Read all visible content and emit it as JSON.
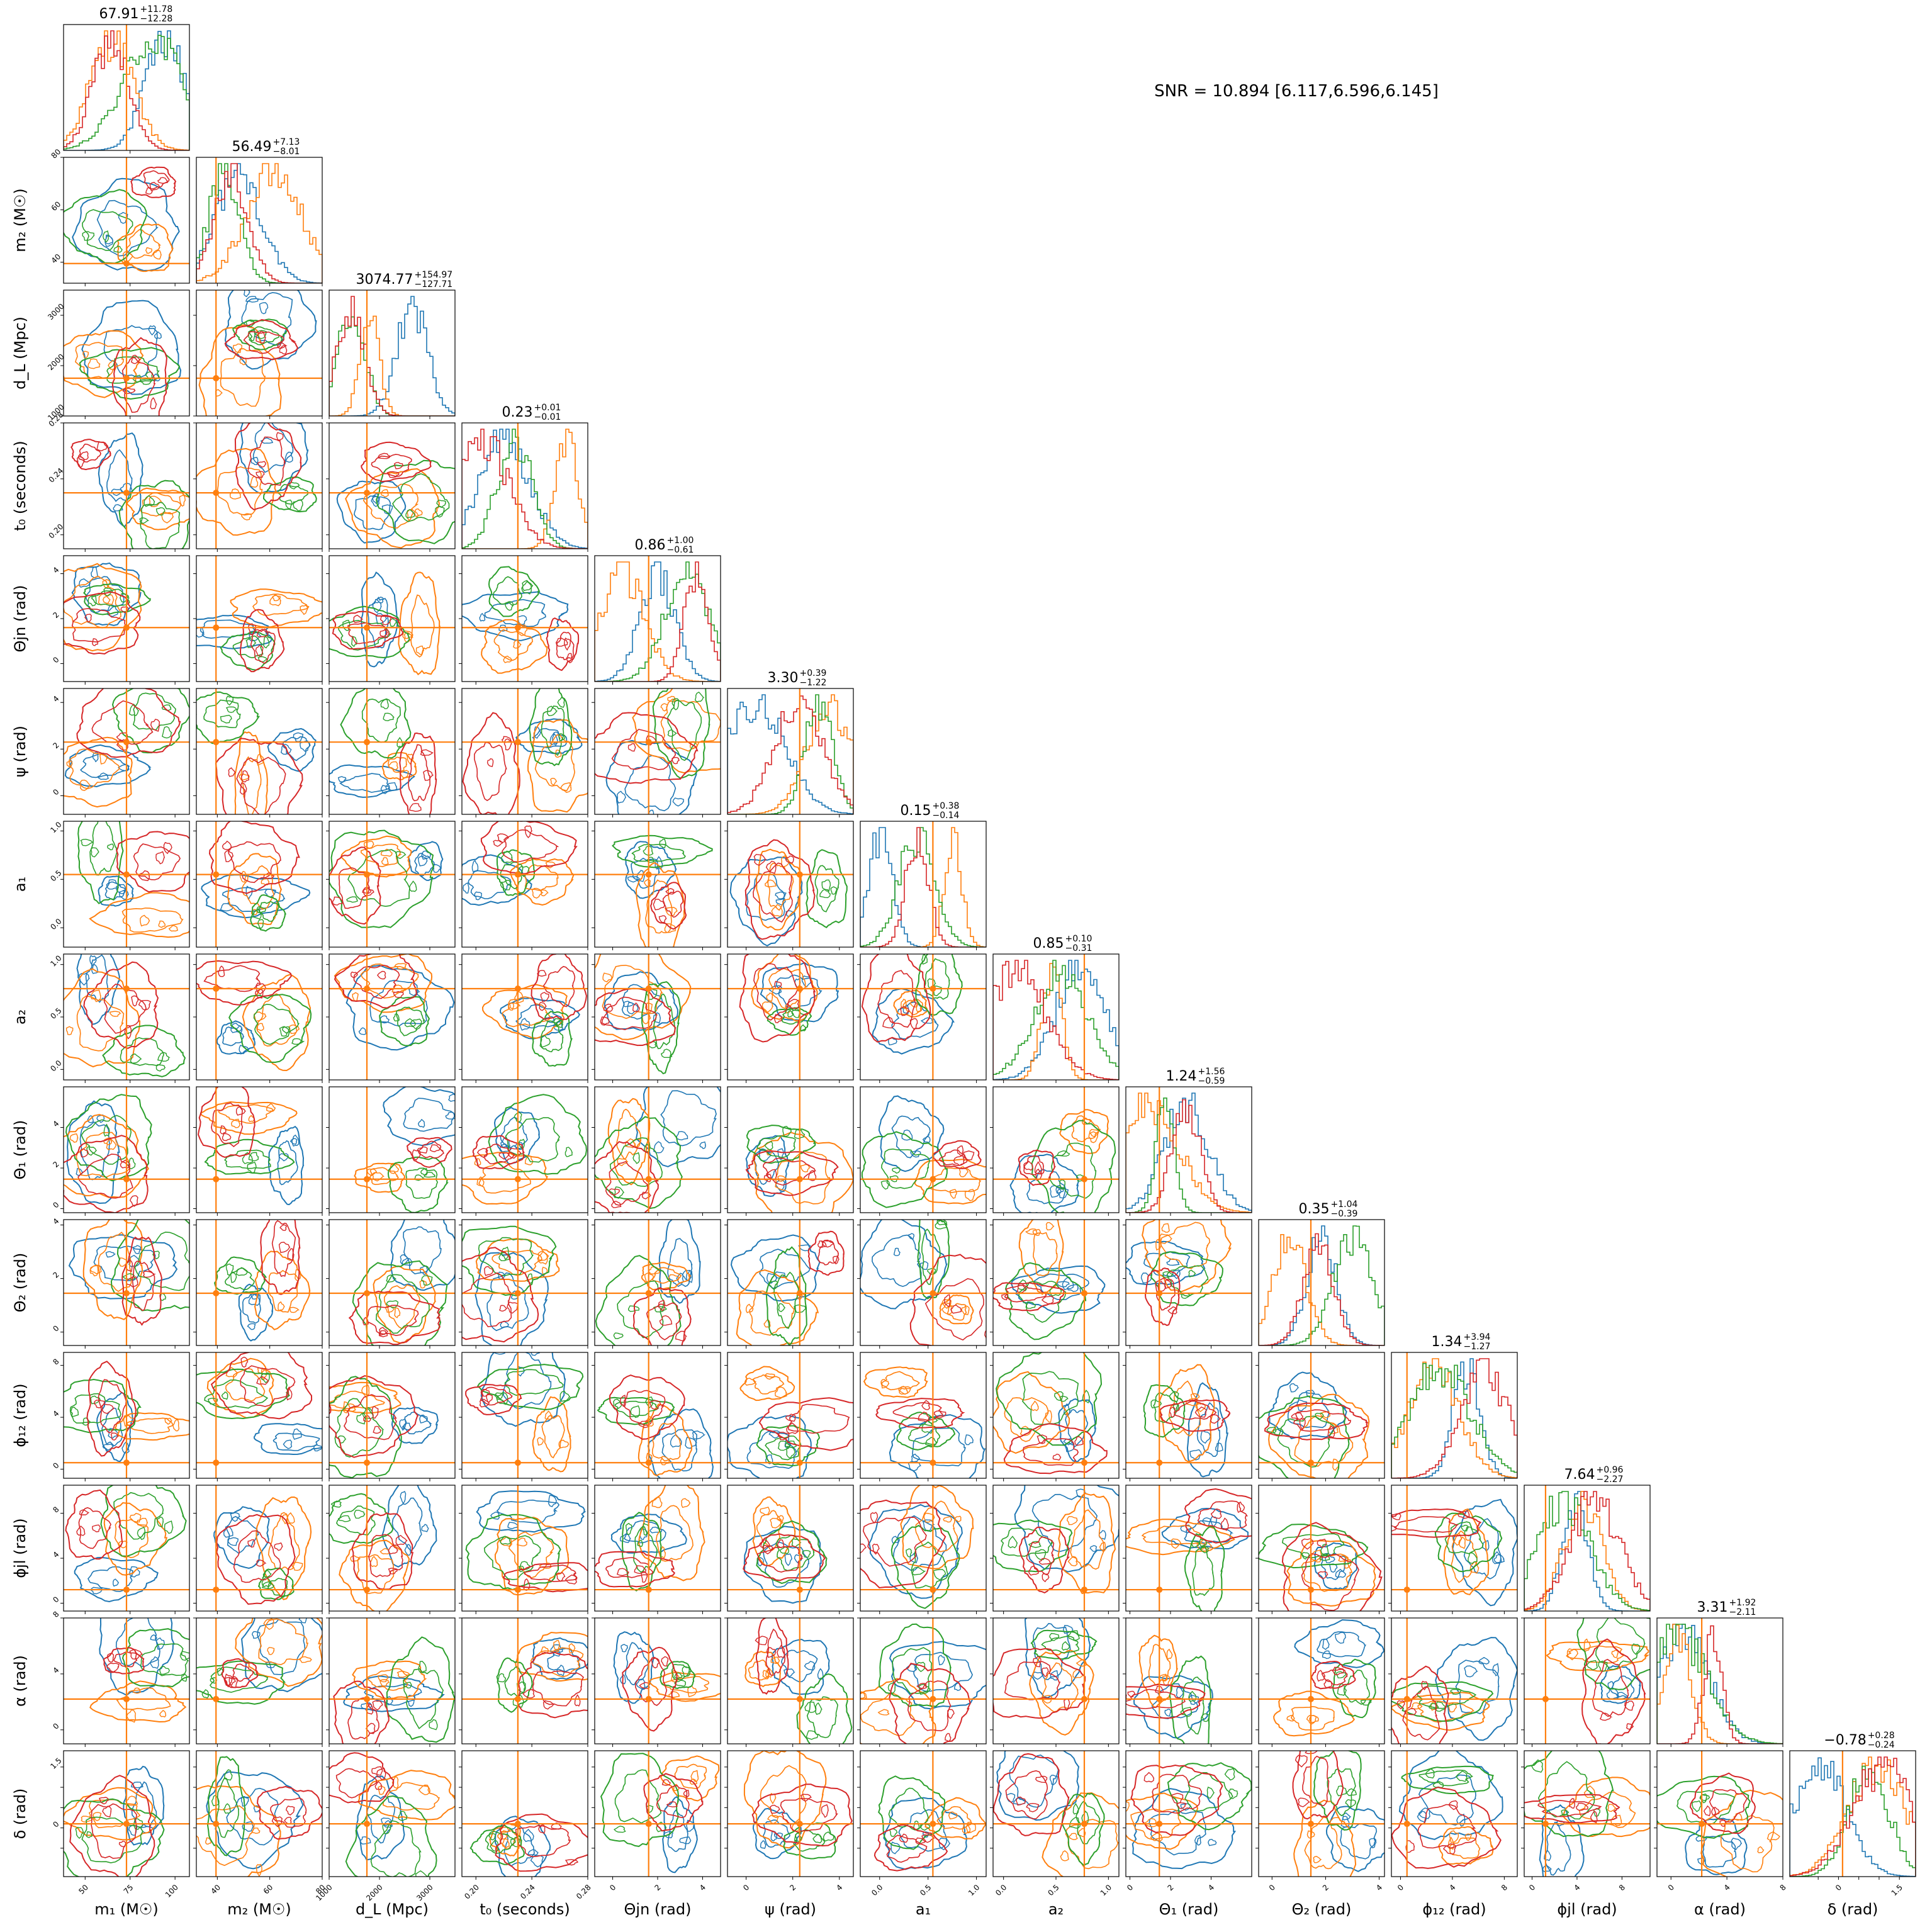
{
  "snr_text": "SNR = 10.894 [6.117,6.596,6.145]",
  "colors": {
    "blue": "#1f77b4",
    "orange": "#ff7f0e",
    "green": "#2ca02c",
    "red": "#d62728",
    "truth": "#ff7f0e"
  },
  "chart_data": {
    "type": "corner",
    "series": [
      {
        "color": "#1f77b4"
      },
      {
        "color": "#ff7f0e"
      },
      {
        "color": "#2ca02c"
      },
      {
        "color": "#d62728"
      }
    ],
    "parameters": [
      {
        "key": "m1",
        "label": "m₁ (M☉)",
        "range": [
          38,
          108
        ],
        "ticks": [
          50,
          75,
          100
        ],
        "truth": 73,
        "stat": "67.91",
        "plus": "+11.78",
        "minus": "−12.28"
      },
      {
        "key": "m2",
        "label": "m₂ (M☉)",
        "range": [
          32,
          80
        ],
        "ticks": [
          40,
          60,
          80
        ],
        "truth": 39.5,
        "stat": "56.49",
        "plus": "+7.13",
        "minus": "−8.01"
      },
      {
        "key": "dL",
        "label": "d_L (Mpc)",
        "range": [
          1000,
          3500
        ],
        "ticks": [
          1000,
          2000,
          3000
        ],
        "truth": 1750,
        "stat": "3074.77",
        "plus": "+154.97",
        "minus": "−127.71"
      },
      {
        "key": "t0",
        "label": "t₀ (seconds)",
        "range": [
          0.19,
          0.28
        ],
        "ticks": [
          0.2,
          0.24,
          0.28
        ],
        "tick_labels": [
          "0.20",
          "0.24",
          "0.28"
        ],
        "truth": 0.23,
        "stat": "0.23",
        "plus": "+0.01",
        "minus": "−0.01"
      },
      {
        "key": "theta_jn",
        "label": "Θjn (rad)",
        "range": [
          -0.8,
          4.8
        ],
        "ticks": [
          0,
          2,
          4
        ],
        "truth": 1.6,
        "stat": "0.86",
        "plus": "+1.00",
        "minus": "−0.61"
      },
      {
        "key": "psi",
        "label": "ψ (rad)",
        "range": [
          -0.8,
          4.6
        ],
        "ticks": [
          0,
          2,
          4
        ],
        "truth": 2.3,
        "stat": "3.30",
        "plus": "+0.39",
        "minus": "−1.22"
      },
      {
        "key": "a1",
        "label": "a₁",
        "range": [
          -0.2,
          1.1
        ],
        "ticks": [
          0.0,
          0.5,
          1.0
        ],
        "tick_labels": [
          "0.0",
          "0.5",
          "1.0"
        ],
        "truth": 0.55,
        "stat": "0.15",
        "plus": "+0.38",
        "minus": "−0.14"
      },
      {
        "key": "a2",
        "label": "a₂",
        "range": [
          -0.1,
          1.1
        ],
        "ticks": [
          0.0,
          0.5,
          1.0
        ],
        "tick_labels": [
          "0.0",
          "0.5",
          "1.0"
        ],
        "truth": 0.77,
        "stat": "0.85",
        "plus": "+0.10",
        "minus": "−0.31"
      },
      {
        "key": "theta1",
        "label": "Θ₁ (rad)",
        "range": [
          -0.2,
          6.0
        ],
        "ticks": [
          0,
          2,
          4
        ],
        "truth": 1.45,
        "stat": "1.24",
        "plus": "+1.56",
        "minus": "−0.59"
      },
      {
        "key": "theta2",
        "label": "Θ₂ (rad)",
        "range": [
          -0.5,
          4.2
        ],
        "ticks": [
          0,
          2,
          4
        ],
        "truth": 1.45,
        "stat": "0.35",
        "plus": "+1.04",
        "minus": "−0.39"
      },
      {
        "key": "phi12",
        "label": "ϕ₁₂ (rad)",
        "range": [
          -0.7,
          9.0
        ],
        "ticks": [
          0,
          4,
          8
        ],
        "truth": 0.5,
        "stat": "1.34",
        "plus": "+3.94",
        "minus": "−1.27"
      },
      {
        "key": "phi_jl",
        "label": "ϕjl (rad)",
        "range": [
          -0.7,
          10.5
        ],
        "ticks": [
          0,
          4,
          8
        ],
        "truth": 1.2,
        "stat": "7.64",
        "plus": "+0.96",
        "minus": "−2.27"
      },
      {
        "key": "alpha",
        "label": "α (rad)",
        "range": [
          -1.0,
          8.0
        ],
        "ticks": [
          0,
          4,
          8
        ],
        "truth": 2.2,
        "stat": "3.31",
        "plus": "+1.92",
        "minus": "−2.11"
      },
      {
        "key": "delta",
        "label": "δ (rad)",
        "range": [
          -1.2,
          1.9
        ],
        "ticks": [
          -0.5,
          0.0,
          0.5,
          1.0,
          1.5
        ],
        "tick_labels": [
          "",
          "0",
          "",
          "",
          "1.5"
        ],
        "truth": 0.1,
        "stat": "−0.78",
        "plus": "+0.28",
        "minus": "−0.24"
      }
    ]
  }
}
